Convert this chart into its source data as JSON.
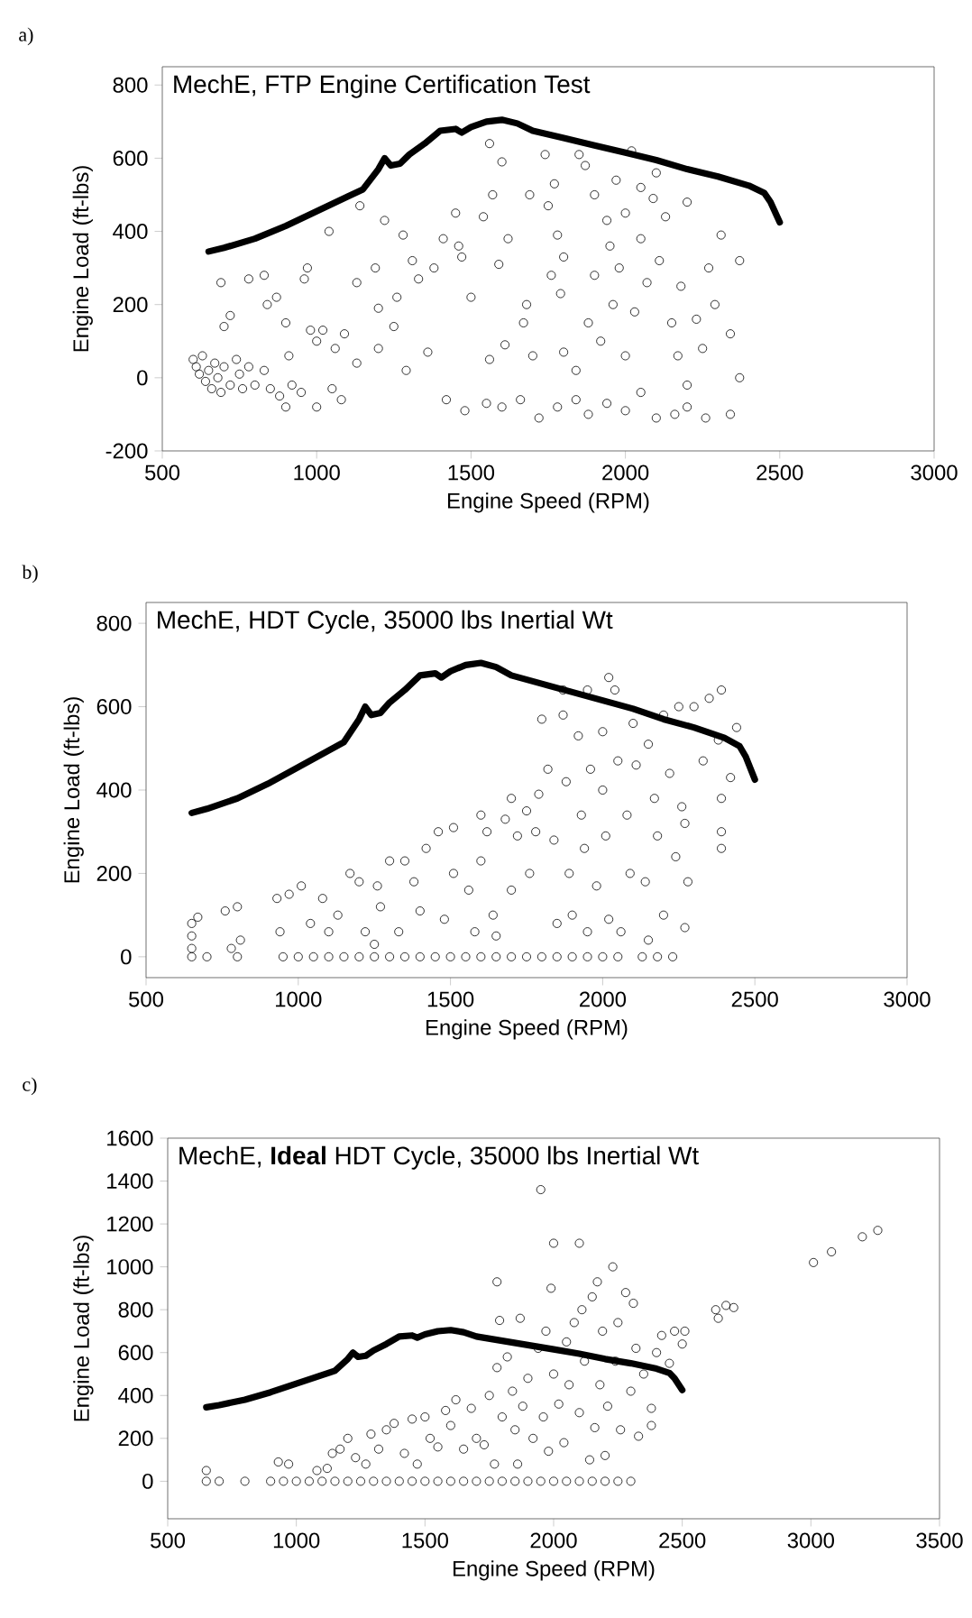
{
  "chart_data": [
    {
      "type": "scatter",
      "title": "MechE, FTP Engine Certification Test",
      "xlabel": "Engine Speed (RPM)",
      "ylabel": "Engine Load (ft-lbs)",
      "annotations": [
        "a)"
      ],
      "xlim": [
        500,
        3000
      ],
      "xticks": [
        500,
        1000,
        1500,
        2000,
        2500,
        3000
      ],
      "ylim": [
        -200,
        850
      ],
      "yticks": [
        -200,
        0,
        200,
        400,
        600,
        800
      ],
      "series": [
        {
          "type": "line",
          "color": "#000000",
          "marker": "none",
          "line_style": "solid",
          "x": [
            650,
            700,
            800,
            900,
            1000,
            1100,
            1150,
            1200,
            1220,
            1240,
            1270,
            1300,
            1350,
            1400,
            1450,
            1470,
            1500,
            1550,
            1600,
            1650,
            1700,
            1800,
            1900,
            2000,
            2100,
            2200,
            2300,
            2400,
            2450,
            2470,
            2500
          ],
          "values": [
            345,
            355,
            380,
            415,
            455,
            495,
            515,
            570,
            600,
            580,
            585,
            610,
            640,
            675,
            680,
            670,
            685,
            700,
            705,
            695,
            675,
            655,
            635,
            615,
            595,
            570,
            550,
            525,
            505,
            480,
            425
          ]
        },
        {
          "color": "#000000",
          "marker": "circle",
          "x": [
            600,
            610,
            620,
            630,
            640,
            650,
            660,
            670,
            680,
            690,
            700,
            720,
            740,
            750,
            760,
            780,
            800,
            830,
            850,
            880,
            900,
            920,
            950,
            1000,
            1050,
            1080,
            690,
            720,
            700,
            780,
            830,
            840,
            870,
            900,
            910,
            960,
            970,
            980,
            1000,
            1020,
            1040,
            1060,
            1090,
            1130,
            1140,
            1130,
            1190,
            1200,
            1200,
            1220,
            1250,
            1260,
            1280,
            1290,
            1310,
            1330,
            1360,
            1380,
            1410,
            1450,
            1460,
            1470,
            1500,
            1540,
            1560,
            1560,
            1570,
            1590,
            1600,
            1610,
            1620,
            1670,
            1680,
            1690,
            1700,
            1740,
            1750,
            1760,
            1770,
            1780,
            1790,
            1800,
            1800,
            1840,
            1850,
            1870,
            1880,
            1900,
            1900,
            1920,
            1940,
            1950,
            1960,
            1970,
            1980,
            2000,
            2000,
            2020,
            2030,
            2050,
            2050,
            2070,
            2090,
            2100,
            2110,
            2130,
            2150,
            2170,
            2180,
            2200,
            2200,
            2230,
            2250,
            2270,
            2290,
            2310,
            2340,
            2370,
            2370,
            1420,
            1480,
            1550,
            1600,
            1660,
            1720,
            1780,
            1840,
            1880,
            1940,
            2000,
            2050,
            2100,
            2160,
            2200,
            2260,
            2340
          ],
          "values": [
            50,
            30,
            10,
            60,
            -10,
            20,
            -30,
            40,
            0,
            -40,
            30,
            -20,
            50,
            10,
            -30,
            30,
            -20,
            20,
            -30,
            -50,
            -80,
            -20,
            -40,
            -80,
            -30,
            -60,
            260,
            170,
            140,
            270,
            280,
            200,
            220,
            150,
            60,
            270,
            300,
            130,
            100,
            130,
            400,
            80,
            120,
            260,
            470,
            40,
            300,
            190,
            80,
            430,
            140,
            220,
            390,
            20,
            320,
            270,
            70,
            300,
            380,
            450,
            360,
            330,
            220,
            440,
            50,
            640,
            500,
            310,
            590,
            90,
            380,
            150,
            200,
            500,
            60,
            610,
            470,
            280,
            530,
            390,
            230,
            330,
            70,
            20,
            610,
            580,
            150,
            500,
            280,
            100,
            430,
            360,
            200,
            540,
            300,
            450,
            60,
            620,
            180,
            520,
            380,
            260,
            490,
            560,
            320,
            440,
            150,
            60,
            250,
            480,
            -20,
            160,
            80,
            300,
            200,
            390,
            120,
            320,
            0,
            -60,
            -90,
            -70,
            -80,
            -60,
            -110,
            -80,
            -60,
            -100,
            -70,
            -90,
            -40,
            -110,
            -100,
            -80,
            -110,
            -100
          ]
        }
      ]
    },
    {
      "type": "scatter",
      "title": "MechE, HDT Cycle, 35000 lbs Inertial Wt",
      "xlabel": "Engine Speed (RPM)",
      "ylabel": "Engine Load (ft-lbs)",
      "annotations": [
        "b)"
      ],
      "xlim": [
        500,
        3000
      ],
      "xticks": [
        500,
        1000,
        1500,
        2000,
        2500,
        3000
      ],
      "ylim": [
        -50,
        850
      ],
      "yticks": [
        0,
        200,
        400,
        600,
        800
      ],
      "series": [
        {
          "type": "line",
          "color": "#000000",
          "marker": "none",
          "line_style": "solid",
          "x": [
            650,
            700,
            800,
            900,
            1000,
            1100,
            1150,
            1200,
            1220,
            1240,
            1270,
            1300,
            1350,
            1400,
            1450,
            1470,
            1500,
            1550,
            1600,
            1650,
            1700,
            1800,
            1900,
            2000,
            2100,
            2200,
            2300,
            2400,
            2450,
            2470,
            2500
          ],
          "values": [
            345,
            355,
            380,
            415,
            455,
            495,
            515,
            570,
            600,
            580,
            585,
            610,
            640,
            675,
            680,
            670,
            685,
            700,
            705,
            695,
            675,
            655,
            635,
            615,
            595,
            570,
            550,
            525,
            505,
            480,
            425
          ]
        },
        {
          "color": "#000000",
          "marker": "circle",
          "x": [
            650,
            700,
            800,
            950,
            1000,
            1050,
            1100,
            1150,
            1200,
            1250,
            1300,
            1350,
            1400,
            1450,
            1500,
            1550,
            1600,
            1650,
            1700,
            1750,
            1800,
            1850,
            1900,
            1950,
            2000,
            2050,
            2130,
            2180,
            2230,
            650,
            650,
            650,
            670,
            760,
            800,
            810,
            780,
            940,
            930,
            970,
            1010,
            1040,
            1080,
            1100,
            1130,
            1170,
            1200,
            1220,
            1250,
            1260,
            1270,
            1300,
            1330,
            1350,
            1380,
            1400,
            1420,
            1460,
            1480,
            1510,
            1510,
            1560,
            1580,
            1600,
            1600,
            1620,
            1640,
            1650,
            1680,
            1700,
            1700,
            1720,
            1750,
            1760,
            1780,
            1790,
            1800,
            1820,
            1840,
            1850,
            1870,
            1880,
            1890,
            1900,
            1920,
            1930,
            1940,
            1950,
            1960,
            1980,
            2000,
            2000,
            2010,
            2020,
            2040,
            2050,
            2060,
            2080,
            2090,
            2100,
            2110,
            2140,
            2150,
            2150,
            2170,
            2180,
            2200,
            2200,
            2220,
            2240,
            2250,
            2260,
            2270,
            2280,
            2270,
            2300,
            2330,
            2350,
            2380,
            2390,
            2390,
            2390,
            2390,
            2420,
            2440,
            1870,
            2020,
            1950
          ],
          "values": [
            0,
            0,
            0,
            0,
            0,
            0,
            0,
            0,
            0,
            0,
            0,
            0,
            0,
            0,
            0,
            0,
            0,
            0,
            0,
            0,
            0,
            0,
            0,
            0,
            0,
            0,
            0,
            0,
            0,
            20,
            50,
            80,
            95,
            110,
            120,
            40,
            20,
            60,
            140,
            150,
            170,
            80,
            140,
            60,
            100,
            200,
            180,
            60,
            30,
            170,
            120,
            230,
            60,
            230,
            180,
            110,
            260,
            300,
            90,
            310,
            200,
            160,
            60,
            340,
            230,
            300,
            100,
            50,
            330,
            380,
            160,
            290,
            350,
            200,
            300,
            390,
            570,
            450,
            280,
            80,
            580,
            420,
            200,
            100,
            530,
            340,
            260,
            60,
            450,
            170,
            540,
            400,
            290,
            90,
            640,
            470,
            60,
            340,
            200,
            560,
            460,
            180,
            510,
            40,
            380,
            290,
            580,
            100,
            440,
            240,
            600,
            360,
            320,
            180,
            70,
            600,
            470,
            620,
            520,
            640,
            380,
            300,
            260,
            430,
            550,
            640,
            670,
            640
          ]
        }
      ]
    },
    {
      "type": "scatter",
      "title": "MechE, **Ideal** HDT Cycle, 35000 lbs Inertial Wt",
      "xlabel": "Engine Speed (RPM)",
      "ylabel": "Engine Load (ft-lbs)",
      "annotations": [
        "c)"
      ],
      "xlim": [
        500,
        3500
      ],
      "xticks": [
        500,
        1000,
        1500,
        2000,
        2500,
        3000,
        3500
      ],
      "ylim": [
        -175,
        1600
      ],
      "yticks": [
        0,
        200,
        400,
        600,
        800,
        1000,
        1200,
        1400,
        1600
      ],
      "series": [
        {
          "type": "line",
          "color": "#000000",
          "marker": "none",
          "line_style": "solid",
          "x": [
            650,
            700,
            800,
            900,
            1000,
            1100,
            1150,
            1200,
            1220,
            1240,
            1270,
            1300,
            1350,
            1400,
            1450,
            1470,
            1500,
            1550,
            1600,
            1650,
            1700,
            1800,
            1900,
            2000,
            2100,
            2200,
            2300,
            2400,
            2450,
            2470,
            2500
          ],
          "values": [
            345,
            355,
            380,
            415,
            455,
            495,
            515,
            570,
            600,
            580,
            585,
            610,
            640,
            675,
            680,
            670,
            685,
            700,
            705,
            695,
            675,
            655,
            635,
            615,
            595,
            570,
            550,
            525,
            505,
            480,
            425
          ]
        },
        {
          "color": "#000000",
          "marker": "circle",
          "x": [
            650,
            700,
            800,
            900,
            950,
            1000,
            1050,
            1100,
            1150,
            1200,
            1250,
            1300,
            1350,
            1400,
            1450,
            1500,
            1550,
            1600,
            1650,
            1700,
            1750,
            1800,
            1850,
            1900,
            1950,
            2000,
            2050,
            2100,
            2150,
            2200,
            2250,
            2300,
            650,
            930,
            970,
            1080,
            1120,
            1140,
            1170,
            1200,
            1230,
            1270,
            1290,
            1320,
            1350,
            1380,
            1420,
            1450,
            1470,
            1500,
            1520,
            1550,
            1580,
            1600,
            1620,
            1650,
            1680,
            1700,
            1730,
            1750,
            1770,
            1780,
            1780,
            1790,
            1800,
            1820,
            1840,
            1850,
            1860,
            1870,
            1880,
            1900,
            1920,
            1940,
            1950,
            1960,
            1970,
            1980,
            1990,
            2000,
            2000,
            2020,
            2040,
            2050,
            2060,
            2080,
            2100,
            2100,
            2110,
            2120,
            2140,
            2150,
            2160,
            2170,
            2180,
            2190,
            2200,
            2210,
            2230,
            2240,
            2250,
            2260,
            2280,
            2300,
            2310,
            2320,
            2330,
            2350,
            2380,
            2380,
            2400,
            2420,
            2450,
            2470,
            2500,
            2510,
            2630,
            2640,
            2670,
            2700,
            3010,
            3080,
            3200,
            3260
          ],
          "values": [
            0,
            0,
            0,
            0,
            0,
            0,
            0,
            0,
            0,
            0,
            0,
            0,
            0,
            0,
            0,
            0,
            0,
            0,
            0,
            0,
            0,
            0,
            0,
            0,
            0,
            0,
            0,
            0,
            0,
            0,
            0,
            0,
            50,
            90,
            80,
            50,
            60,
            130,
            150,
            200,
            110,
            80,
            220,
            150,
            240,
            270,
            130,
            290,
            80,
            300,
            200,
            160,
            330,
            260,
            380,
            150,
            340,
            200,
            170,
            400,
            80,
            530,
            930,
            750,
            300,
            580,
            420,
            240,
            80,
            760,
            350,
            480,
            200,
            620,
            1360,
            300,
            700,
            140,
            900,
            500,
            1110,
            360,
            180,
            650,
            450,
            740,
            1110,
            320,
            800,
            560,
            100,
            860,
            250,
            930,
            450,
            700,
            120,
            350,
            1000,
            560,
            740,
            240,
            880,
            420,
            830,
            620,
            210,
            500,
            260,
            340,
            600,
            680,
            550,
            700,
            640,
            700,
            800,
            760,
            820,
            810,
            1020,
            1070,
            1140,
            1170
          ]
        }
      ]
    }
  ]
}
